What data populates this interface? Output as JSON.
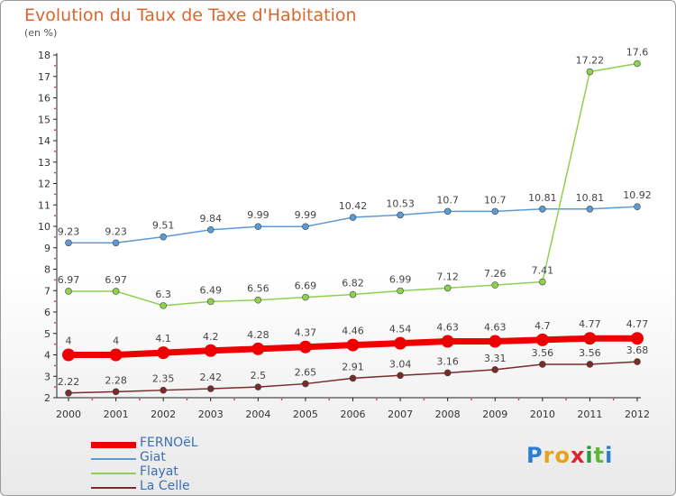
{
  "title": "Evolution du Taux de Taxe d'Habitation",
  "subtitle": "(en %)",
  "logo": {
    "letters": [
      "P",
      "r",
      "o",
      "x",
      "i",
      "t",
      "i"
    ],
    "colors": [
      "#2a7fd0",
      "#e8a21a",
      "#e8a21a",
      "#d8262c",
      "#2a9a3a",
      "#5fb83a",
      "#2a7fd0"
    ]
  },
  "chart_data": {
    "type": "line",
    "x": [
      "2000",
      "2001",
      "2002",
      "2003",
      "2004",
      "2005",
      "2006",
      "2007",
      "2008",
      "2009",
      "2010",
      "2011",
      "2012"
    ],
    "ylim": [
      2,
      18
    ],
    "yticks": [
      "2",
      "3",
      "4",
      "5",
      "6",
      "7",
      "8",
      "9",
      "10",
      "11",
      "12",
      "13",
      "14",
      "15",
      "16",
      "17",
      "18"
    ],
    "grid": false,
    "legend_position": "bottom-left",
    "series": [
      {
        "name": "FERNOëL",
        "color": "#ee0000",
        "line_width": 7,
        "marker_radius": 7,
        "values": [
          4,
          4,
          4.1,
          4.2,
          4.28,
          4.37,
          4.46,
          4.54,
          4.63,
          4.63,
          4.7,
          4.77,
          4.77
        ],
        "labels": [
          "4",
          "4",
          "4.1",
          "4.2",
          "4.28",
          "4.37",
          "4.46",
          "4.54",
          "4.63",
          "4.63",
          "4.7",
          "4.77",
          "4.77"
        ]
      },
      {
        "name": "Giat",
        "color": "#5b9bd5",
        "line_width": 1.5,
        "marker_radius": 3.5,
        "values": [
          9.23,
          9.23,
          9.51,
          9.84,
          9.99,
          9.99,
          10.42,
          10.53,
          10.7,
          10.7,
          10.81,
          10.81,
          10.92
        ],
        "labels": [
          "9.23",
          "9.23",
          "9.51",
          "9.84",
          "9.99",
          "9.99",
          "10.42",
          "10.53",
          "10.7",
          "10.7",
          "10.81",
          "10.81",
          "10.92"
        ]
      },
      {
        "name": "Flayat",
        "color": "#8fd14f",
        "line_width": 1.5,
        "marker_radius": 3.5,
        "values": [
          6.97,
          6.97,
          6.3,
          6.49,
          6.56,
          6.69,
          6.82,
          6.99,
          7.12,
          7.26,
          7.41,
          17.22,
          17.6
        ],
        "labels": [
          "6.97",
          "6.97",
          "6.3",
          "6.49",
          "6.56",
          "6.69",
          "6.82",
          "6.99",
          "7.12",
          "7.26",
          "7.41",
          "17.22",
          "17.6"
        ]
      },
      {
        "name": "La Celle",
        "color": "#7a2a2a",
        "line_width": 1.5,
        "marker_radius": 3.5,
        "values": [
          2.22,
          2.28,
          2.35,
          2.42,
          2.5,
          2.65,
          2.91,
          3.04,
          3.16,
          3.31,
          3.56,
          3.56,
          3.68
        ],
        "labels": [
          "2.22",
          "2.28",
          "2.35",
          "2.42",
          "2.5",
          "2.65",
          "2.91",
          "3.04",
          "3.16",
          "3.31",
          "3.56",
          "3.56",
          "3.68"
        ]
      }
    ]
  }
}
